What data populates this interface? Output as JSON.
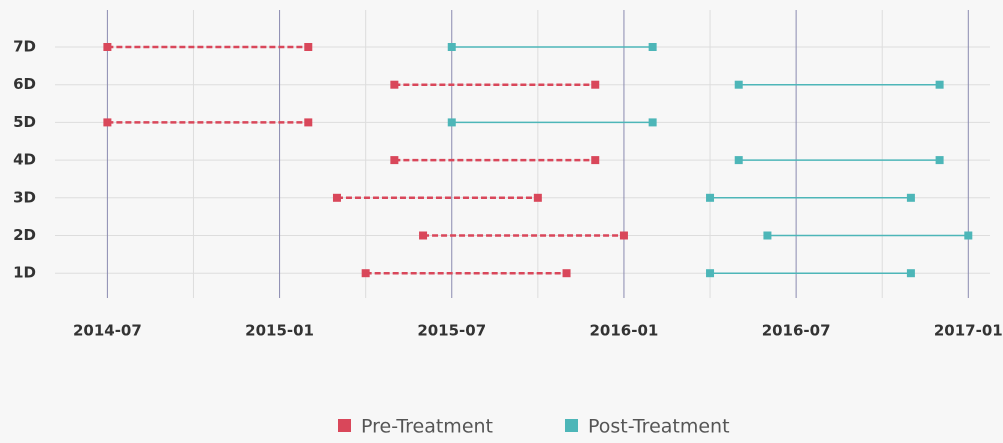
{
  "chart_data": {
    "type": "dumbbell",
    "categories": [
      "7D",
      "6D",
      "5D",
      "4D",
      "3D",
      "2D",
      "1D"
    ],
    "series": [
      {
        "name": "Pre-Treatment",
        "color": "#d9475a",
        "dashed": true,
        "start": [
          "2014-07",
          "2015-05",
          "2014-07",
          "2015-05",
          "2015-03",
          "2015-06",
          "2015-04"
        ],
        "end": [
          "2015-02",
          "2015-12",
          "2015-02",
          "2015-12",
          "2015-10",
          "2016-01",
          "2015-11"
        ]
      },
      {
        "name": "Post-Treatment",
        "color": "#4db6b8",
        "dashed": false,
        "start": [
          "2015-07",
          "2016-05",
          "2015-07",
          "2016-05",
          "2016-04",
          "2016-06",
          "2016-04"
        ],
        "end": [
          "2016-02",
          "2016-12",
          "2016-02",
          "2016-12",
          "2016-11",
          "2017-01",
          "2016-11"
        ]
      }
    ],
    "xlim": [
      "2014-05",
      "2017-02"
    ],
    "xticks": [
      "2014-07",
      "2015-01",
      "2015-07",
      "2016-01",
      "2016-07",
      "2017-01"
    ],
    "minor_xticks": [
      "2014-10",
      "2015-04",
      "2015-10",
      "2016-04",
      "2016-10"
    ],
    "grid": true,
    "legend": "bottom"
  }
}
